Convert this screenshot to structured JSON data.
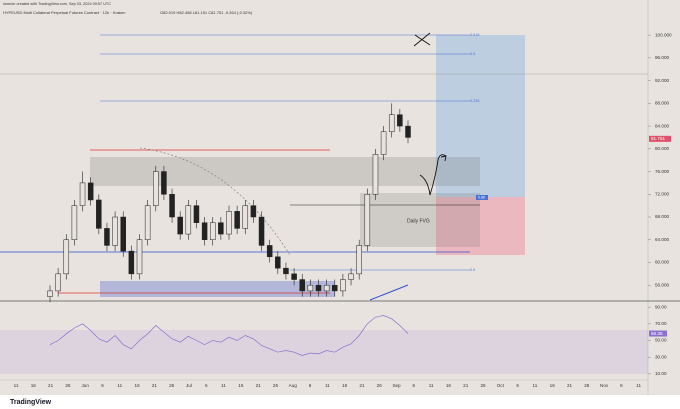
{
  "header": {
    "credit": "lonechr created with TradingView.com, Sep 03, 2024 09:57 UTC",
    "symbol": "HYPEUSD Multi Collateral Perpetual Futures Contract · 12h · Kraken",
    "ohlc": "O82.019 H82.458 L81.151 C81.751 -0.264 (-0.32%)"
  },
  "chart_data": {
    "type": "candlestick",
    "open": [
      54,
      55,
      58,
      64,
      70,
      74,
      71,
      66,
      63,
      68,
      62,
      58,
      64,
      70,
      76,
      72,
      68,
      65,
      70,
      67,
      64,
      67,
      65,
      69,
      66,
      70,
      68,
      63,
      61,
      59,
      58,
      57,
      55,
      56,
      55,
      56,
      55,
      57,
      58,
      63,
      72,
      79,
      83,
      86,
      84
    ],
    "high": [
      56,
      59,
      65,
      71,
      76,
      75,
      72,
      67,
      69,
      69,
      63,
      65,
      71,
      77,
      77,
      73,
      69,
      71,
      71,
      68,
      68,
      68,
      70,
      70,
      71,
      71,
      69,
      64,
      62,
      60,
      59,
      58,
      57,
      57,
      57,
      57,
      58,
      59,
      64,
      73,
      80,
      84,
      88,
      87,
      85
    ],
    "low": [
      53,
      54,
      57,
      63,
      69,
      70,
      65,
      62,
      62,
      61,
      57,
      57,
      63,
      69,
      71,
      67,
      64,
      64,
      66,
      63,
      63,
      64,
      64,
      65,
      65,
      67,
      62,
      60,
      58,
      57,
      56,
      54,
      54,
      54,
      54,
      54,
      54,
      56,
      57,
      62,
      71,
      78,
      82,
      83,
      81
    ],
    "close": [
      55,
      58,
      64,
      70,
      74,
      71,
      66,
      63,
      68,
      62,
      58,
      64,
      70,
      76,
      72,
      68,
      65,
      70,
      67,
      64,
      67,
      65,
      69,
      66,
      70,
      68,
      63,
      61,
      59,
      58,
      57,
      55,
      56,
      55,
      56,
      55,
      57,
      58,
      63,
      72,
      79,
      83,
      86,
      84,
      82
    ],
    "ylim": [
      53.4,
      104.6
    ],
    "yticks": [
      {
        "value": 56,
        "label": "56.000"
      },
      {
        "value": 60,
        "label": "60.000"
      },
      {
        "value": 64,
        "label": "64.000"
      },
      {
        "value": 68,
        "label": "68.000"
      },
      {
        "value": 72,
        "label": "72.000"
      },
      {
        "value": 76,
        "label": "76.000"
      },
      {
        "value": 80,
        "label": "80.000"
      },
      {
        "value": 84,
        "label": "84.000"
      },
      {
        "value": 88,
        "label": "88.000"
      },
      {
        "value": 92,
        "label": "92.000"
      },
      {
        "value": 96,
        "label": "96.000"
      },
      {
        "value": 100,
        "label": "100.000"
      }
    ],
    "last_price": {
      "value": 81.751,
      "label": "81.751"
    },
    "x_labels": [
      "11",
      "16",
      "21",
      "26",
      "Jun",
      "6",
      "11",
      "16",
      "21",
      "26",
      "Jul",
      "6",
      "11",
      "16",
      "21",
      "26",
      "Aug",
      "6",
      "11",
      "16",
      "21",
      "26",
      "Sep",
      "6",
      "11",
      "16",
      "21",
      "26",
      "Oct",
      "6",
      "11",
      "16",
      "21",
      "26",
      "Nov",
      "6",
      "11"
    ],
    "rsi": {
      "values": [
        45,
        50,
        58,
        65,
        70,
        62,
        52,
        48,
        56,
        45,
        40,
        50,
        58,
        68,
        60,
        52,
        48,
        55,
        50,
        45,
        50,
        48,
        54,
        50,
        56,
        52,
        44,
        40,
        36,
        38,
        36,
        32,
        35,
        34,
        38,
        36,
        42,
        46,
        56,
        70,
        78,
        80,
        76,
        68,
        58.35
      ],
      "ylim": [
        5,
        95
      ],
      "yticks": [
        {
          "value": 10,
          "label": "10.00"
        },
        {
          "value": 30,
          "label": "30.00"
        },
        {
          "value": 50,
          "label": "50.00"
        },
        {
          "value": 70,
          "label": "70.00"
        },
        {
          "value": 90,
          "label": "90.00"
        }
      ],
      "last": {
        "value": 58.35,
        "label": "58.35"
      },
      "color": "#8a6fd1"
    },
    "annotations": {
      "fvg": "Daily FVG",
      "fib1": "0.618",
      "fib2": "0.5",
      "fib3": "0.236",
      "fib4": "0.5",
      "ratio": "0.88"
    }
  },
  "footer": "TradingView"
}
